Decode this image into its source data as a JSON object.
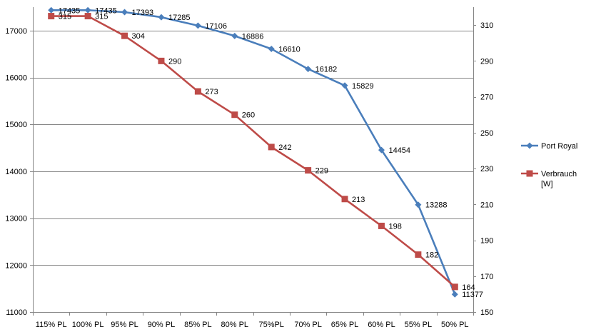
{
  "chart_data": {
    "type": "line",
    "categories": [
      "115% PL",
      "100% PL",
      "95% PL",
      "90% PL",
      "85% PL",
      "80% PL",
      "75%PL",
      "70% PL",
      "65% PL",
      "60% PL",
      "55% PL",
      "50% PL"
    ],
    "series": [
      {
        "name": "Port Royal",
        "axis": "left",
        "color": "#4a7ebb",
        "marker": "diamond",
        "values": [
          17435,
          17435,
          17393,
          17285,
          17106,
          16886,
          16610,
          16182,
          15829,
          14454,
          13288,
          11377
        ]
      },
      {
        "name": "Verbrauch [W]",
        "legend_lines": [
          "Verbrauch",
          "[W]"
        ],
        "axis": "right",
        "color": "#be4b48",
        "marker": "square",
        "values": [
          315,
          315,
          304,
          290,
          273,
          260,
          242,
          229,
          213,
          198,
          182,
          164
        ]
      }
    ],
    "y_left": {
      "min": 11000,
      "max": 17500,
      "ticks": [
        11000,
        12000,
        13000,
        14000,
        15000,
        16000,
        17000
      ]
    },
    "y_right": {
      "min": 150,
      "max": 320,
      "ticks": [
        150,
        170,
        190,
        210,
        230,
        250,
        270,
        290,
        310
      ]
    },
    "grid": true,
    "legend_position": "right",
    "title": "",
    "xlabel": "",
    "ylabel": ""
  }
}
